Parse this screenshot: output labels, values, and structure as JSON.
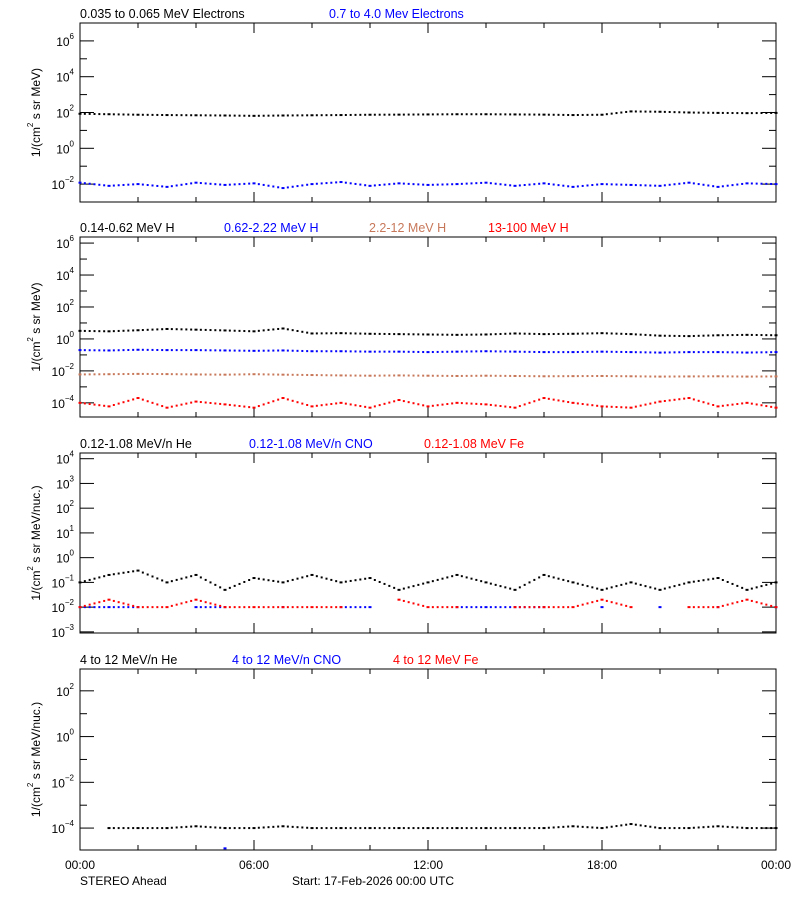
{
  "footer": {
    "spacecraft": "STEREO Ahead",
    "start": "Start: 17-Feb-2026 00:00 UTC"
  },
  "chart_data": [
    {
      "type": "scatter",
      "ylabel": {
        "pre": "1/(cm",
        "sup": "2",
        "post": " s sr MeV)"
      },
      "yscale": "log",
      "ylim": [
        0.001,
        10000000
      ],
      "ytick_exponents": [
        "6",
        "4",
        "2",
        "0",
        "-2"
      ],
      "yminor_exponents": [
        "5",
        "3",
        "1",
        "-1"
      ],
      "xlim": [
        0,
        24
      ],
      "x": [
        0,
        1,
        2,
        3,
        4,
        5,
        6,
        7,
        8,
        9,
        10,
        11,
        12,
        13,
        14,
        15,
        16,
        17,
        18,
        19,
        20,
        21,
        22,
        23,
        24
      ],
      "series": [
        {
          "name": "0.035 to 0.065 MeV Electrons",
          "color": "#000000",
          "values": [
            85,
            80,
            75,
            72,
            70,
            68,
            65,
            68,
            70,
            72,
            75,
            76,
            78,
            80,
            80,
            78,
            76,
            72,
            75,
            115,
            110,
            100,
            95,
            92,
            95
          ]
        },
        {
          "name": "0.7 to 4.0 Mev Electrons",
          "color": "#0000ff",
          "values": [
            0.012,
            0.008,
            0.01,
            0.007,
            0.012,
            0.009,
            0.011,
            0.006,
            0.01,
            0.013,
            0.008,
            0.011,
            0.009,
            0.01,
            0.012,
            0.008,
            0.011,
            0.007,
            0.01,
            0.009,
            0.008,
            0.012,
            0.007,
            0.011,
            0.01
          ]
        }
      ]
    },
    {
      "type": "scatter",
      "ylabel": {
        "pre": "1/(cm",
        "sup": "2",
        "post": " s sr MeV)"
      },
      "yscale": "log",
      "ylim": [
        1.3e-05,
        2400000
      ],
      "ytick_exponents": [
        "6",
        "4",
        "2",
        "0",
        "-2",
        "-4"
      ],
      "yminor_exponents": [
        "5",
        "3",
        "1",
        "-1",
        "-3"
      ],
      "xlim": [
        0,
        24
      ],
      "x": [
        0,
        1,
        2,
        3,
        4,
        5,
        6,
        7,
        8,
        9,
        10,
        11,
        12,
        13,
        14,
        15,
        16,
        17,
        18,
        19,
        20,
        21,
        22,
        23,
        24
      ],
      "series": [
        {
          "name": "0.14-0.62 MeV H",
          "color": "#000000",
          "values": [
            3.2,
            3,
            3.5,
            4.2,
            3.8,
            3.4,
            3,
            4.5,
            2.2,
            2.3,
            2.1,
            2,
            1.9,
            1.8,
            1.9,
            2.2,
            2,
            2.1,
            2.3,
            2,
            1.6,
            1.5,
            1.7,
            1.8,
            1.7
          ]
        },
        {
          "name": "0.62-2.22 MeV H",
          "color": "#0000ff",
          "values": [
            0.2,
            0.19,
            0.21,
            0.2,
            0.2,
            0.19,
            0.18,
            0.19,
            0.17,
            0.17,
            0.16,
            0.16,
            0.15,
            0.16,
            0.17,
            0.16,
            0.15,
            0.15,
            0.16,
            0.15,
            0.14,
            0.15,
            0.15,
            0.14,
            0.15
          ]
        },
        {
          "name": "2.2-12 MeV H",
          "color": "#c8785a",
          "values": [
            0.006,
            0.0062,
            0.0065,
            0.0063,
            0.006,
            0.0058,
            0.0062,
            0.0058,
            0.0055,
            0.0052,
            0.005,
            0.0052,
            0.005,
            0.0048,
            0.005,
            0.0048,
            0.0046,
            0.0047,
            0.0048,
            0.0046,
            0.0044,
            0.0045,
            0.0046,
            0.0044,
            0.0045
          ]
        },
        {
          "name": "13-100 MeV H",
          "color": "#ff0000",
          "values": [
            0.0001,
            6e-05,
            0.0002,
            5e-05,
            0.00012,
            8e-05,
            5e-05,
            0.0002,
            6e-05,
            0.0001,
            5e-05,
            0.00015,
            6e-05,
            0.0001,
            8e-05,
            5e-05,
            0.0002,
            0.0001,
            6e-05,
            5e-05,
            0.00012,
            0.0002,
            6e-05,
            0.0001,
            5e-05
          ]
        }
      ]
    },
    {
      "type": "scatter",
      "ylabel": {
        "pre": "1/(cm",
        "sup": "2",
        "post": " s sr MeV/nuc.)"
      },
      "yscale": "log",
      "ylim": [
        0.0009,
        17000
      ],
      "ytick_exponents": [
        "4",
        "3",
        "2",
        "1",
        "0",
        "-1",
        "-2",
        "-3"
      ],
      "yminor_exponents": [],
      "xlim": [
        0,
        24
      ],
      "x": [
        0,
        1,
        2,
        3,
        4,
        5,
        6,
        7,
        8,
        9,
        10,
        11,
        12,
        13,
        14,
        15,
        16,
        17,
        18,
        19,
        20,
        21,
        22,
        23,
        24
      ],
      "series": [
        {
          "name": "0.12-1.08 MeV/n He",
          "color": "#000000",
          "values": [
            0.1,
            0.2,
            0.3,
            0.1,
            0.2,
            0.05,
            0.15,
            0.1,
            0.2,
            0.1,
            0.15,
            0.05,
            0.1,
            0.2,
            0.1,
            0.05,
            0.2,
            0.1,
            0.05,
            0.1,
            0.05,
            0.1,
            0.15,
            0.05,
            0.1
          ]
        },
        {
          "name": "0.12-1.08 MeV/n CNO",
          "color": "#0000ff",
          "values": [
            0.01,
            0.01,
            0.01,
            null,
            0.01,
            0.01,
            null,
            0.01,
            null,
            0.01,
            0.01,
            null,
            null,
            0.01,
            0.01,
            0.01,
            0.01,
            null,
            0.01,
            null,
            0.01,
            null,
            0.01,
            null,
            0.01
          ]
        },
        {
          "name": "0.12-1.08 MeV Fe",
          "color": "#ff0000",
          "values": [
            0.01,
            0.02,
            0.01,
            0.01,
            0.02,
            0.01,
            0.01,
            0.01,
            0.01,
            0.01,
            null,
            0.02,
            0.01,
            0.01,
            null,
            0.01,
            0.01,
            0.01,
            0.02,
            0.01,
            null,
            0.01,
            0.01,
            0.02,
            0.01
          ]
        }
      ]
    },
    {
      "type": "scatter",
      "ylabel": {
        "pre": "1/(cm",
        "sup": "2",
        "post": " s sr MeV/nuc.)"
      },
      "yscale": "log",
      "ylim": [
        1.1e-05,
        900
      ],
      "ytick_exponents": [
        "2",
        "0",
        "-2",
        "-4"
      ],
      "yminor_exponents": [
        "1",
        "-1",
        "-3"
      ],
      "xlim": [
        0,
        24
      ],
      "x": [
        0,
        1,
        2,
        3,
        4,
        5,
        6,
        7,
        8,
        9,
        10,
        11,
        12,
        13,
        14,
        15,
        16,
        17,
        18,
        19,
        20,
        21,
        22,
        23,
        24
      ],
      "series": [
        {
          "name": "4 to 12 MeV/n He",
          "color": "#000000",
          "values": [
            null,
            0.0001,
            0.0001,
            0.0001,
            0.00012,
            0.0001,
            0.0001,
            0.00012,
            0.0001,
            0.0001,
            0.0001,
            0.0001,
            0.0001,
            0.0001,
            0.0001,
            0.0001,
            0.0001,
            0.00012,
            0.0001,
            0.00015,
            0.0001,
            0.0001,
            0.00012,
            0.0001,
            0.0001
          ]
        },
        {
          "name": "4 to 12 MeV/n CNO",
          "color": "#0000ff",
          "values": [
            null,
            null,
            null,
            null,
            null,
            1.3e-05,
            null,
            null,
            null,
            null,
            null,
            null,
            null,
            null,
            null,
            null,
            null,
            null,
            null,
            null,
            null,
            null,
            null,
            null,
            null
          ]
        },
        {
          "name": "4 to 12 MeV Fe",
          "color": "#ff0000",
          "values": []
        }
      ]
    }
  ],
  "x_ticks": {
    "labels": [
      "00:00",
      "06:00",
      "12:00",
      "18:00",
      "00:00"
    ],
    "label_hours": [
      0,
      6,
      12,
      18,
      24
    ],
    "minor_hours": [
      2,
      4,
      8,
      10,
      14,
      16,
      20,
      22
    ]
  }
}
